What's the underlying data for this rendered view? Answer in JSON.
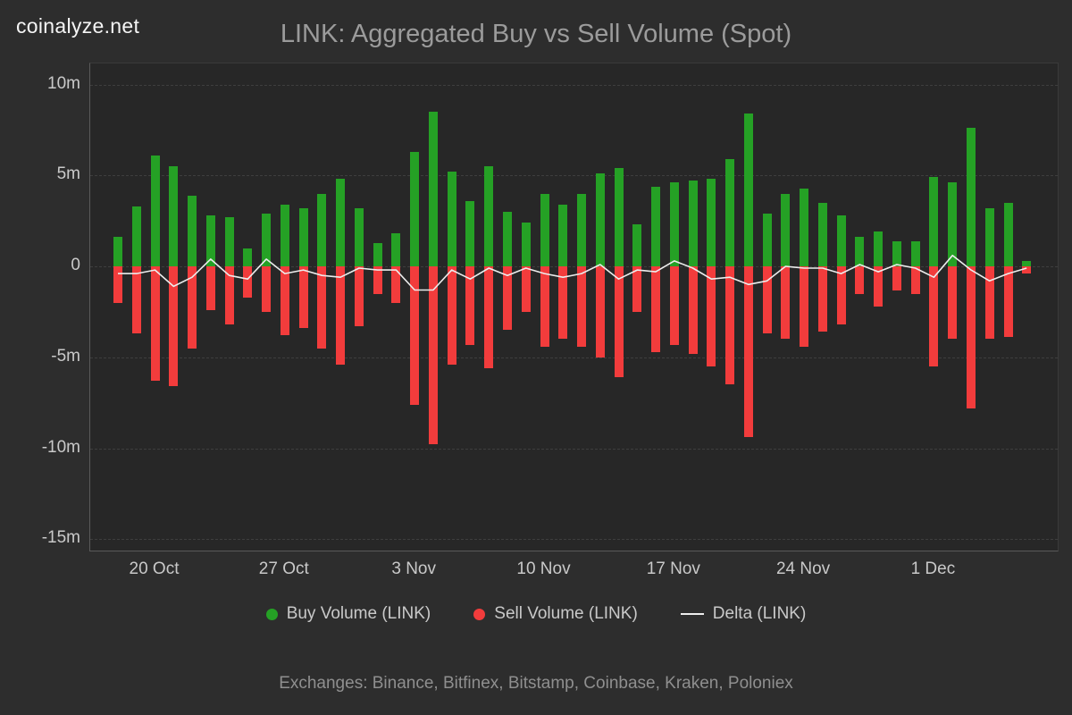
{
  "logo": "coinalyze.net",
  "title": "LINK: Aggregated Buy vs Sell Volume (Spot)",
  "footer": "Exchanges: Binance, Bitfinex, Bitstamp, Coinbase, Kraken, Poloniex",
  "legend": [
    {
      "label": "Buy Volume (LINK)",
      "color": "#25a125",
      "marker": "dot"
    },
    {
      "label": "Sell Volume (LINK)",
      "color": "#f23c3c",
      "marker": "dot"
    },
    {
      "label": "Delta (LINK)",
      "color": "#ededed",
      "marker": "line"
    }
  ],
  "chart_data": {
    "type": "bar",
    "title": "LINK: Aggregated Buy vs Sell Volume (Spot)",
    "unit": "millions of LINK",
    "x_unit": "day",
    "grid": "dashed-horizontal",
    "legend_position": "bottom",
    "ylim": [
      -15.7,
      11.2
    ],
    "categories": [
      "18 Oct",
      "19 Oct",
      "20 Oct",
      "21 Oct",
      "22 Oct",
      "23 Oct",
      "24 Oct",
      "25 Oct",
      "26 Oct",
      "27 Oct",
      "28 Oct",
      "29 Oct",
      "30 Oct",
      "31 Oct",
      "1 Nov",
      "2 Nov",
      "3 Nov",
      "4 Nov",
      "5 Nov",
      "6 Nov",
      "7 Nov",
      "8 Nov",
      "9 Nov",
      "10 Nov",
      "11 Nov",
      "12 Nov",
      "13 Nov",
      "14 Nov",
      "15 Nov",
      "16 Nov",
      "17 Nov",
      "18 Nov",
      "19 Nov",
      "20 Nov",
      "21 Nov",
      "22 Nov",
      "23 Nov",
      "24 Nov",
      "25 Nov",
      "26 Nov",
      "27 Nov",
      "28 Nov",
      "29 Nov",
      "30 Nov",
      "1 Dec",
      "2 Dec",
      "3 Dec",
      "4 Dec",
      "5 Dec",
      "6 Dec"
    ],
    "series": [
      {
        "name": "Buy Volume (LINK)",
        "type": "bar",
        "color": "#25a125",
        "values": [
          1.6,
          3.3,
          6.1,
          5.5,
          3.9,
          2.8,
          2.7,
          1.0,
          2.9,
          3.4,
          3.2,
          4.0,
          4.8,
          3.2,
          1.3,
          1.8,
          6.3,
          8.5,
          5.2,
          3.6,
          5.5,
          3.0,
          2.4,
          4.0,
          3.4,
          4.0,
          5.1,
          5.4,
          2.3,
          4.4,
          4.6,
          4.7,
          4.8,
          5.9,
          8.4,
          2.9,
          4.0,
          4.3,
          3.5,
          2.8,
          1.6,
          1.9,
          1.4,
          1.4,
          4.9,
          4.6,
          7.6,
          3.2,
          3.5,
          0.3
        ]
      },
      {
        "name": "Sell Volume (LINK)",
        "type": "bar",
        "color": "#f23c3c",
        "values": [
          -2.0,
          -3.7,
          -6.3,
          -6.6,
          -4.5,
          -2.4,
          -3.2,
          -1.7,
          -2.5,
          -3.8,
          -3.4,
          -4.5,
          -5.4,
          -3.3,
          -1.5,
          -2.0,
          -7.6,
          -9.8,
          -5.4,
          -4.3,
          -5.6,
          -3.5,
          -2.5,
          -4.4,
          -4.0,
          -4.4,
          -5.0,
          -6.1,
          -2.5,
          -4.7,
          -4.3,
          -4.8,
          -5.5,
          -6.5,
          -9.4,
          -3.7,
          -4.0,
          -4.4,
          -3.6,
          -3.2,
          -1.5,
          -2.2,
          -1.3,
          -1.5,
          -5.5,
          -4.0,
          -7.8,
          -4.0,
          -3.9,
          -0.4
        ]
      },
      {
        "name": "Delta (LINK)",
        "type": "line",
        "color": "#ededed",
        "values": [
          -0.4,
          -0.4,
          -0.2,
          -1.1,
          -0.6,
          0.4,
          -0.5,
          -0.7,
          0.4,
          -0.4,
          -0.2,
          -0.5,
          -0.6,
          -0.1,
          -0.2,
          -0.2,
          -1.3,
          -1.3,
          -0.2,
          -0.7,
          -0.1,
          -0.5,
          -0.1,
          -0.4,
          -0.6,
          -0.4,
          0.1,
          -0.7,
          -0.2,
          -0.3,
          0.3,
          -0.1,
          -0.7,
          -0.6,
          -1.0,
          -0.8,
          0.0,
          -0.1,
          -0.1,
          -0.4,
          0.1,
          -0.3,
          0.1,
          -0.1,
          -0.6,
          0.6,
          -0.2,
          -0.8,
          -0.4,
          -0.1
        ]
      }
    ],
    "yticks": [
      {
        "label": "10m",
        "value": 10
      },
      {
        "label": "5m",
        "value": 5
      },
      {
        "label": "0",
        "value": 0
      },
      {
        "label": "-5m",
        "value": -5
      },
      {
        "label": "-10m",
        "value": -10
      },
      {
        "label": "-15m",
        "value": -15
      }
    ],
    "xticks": [
      {
        "label": "20 Oct",
        "index": 2
      },
      {
        "label": "27 Oct",
        "index": 9
      },
      {
        "label": "3 Nov",
        "index": 16
      },
      {
        "label": "10 Nov",
        "index": 23
      },
      {
        "label": "17 Nov",
        "index": 30
      },
      {
        "label": "24 Nov",
        "index": 37
      },
      {
        "label": "1 Dec",
        "index": 44
      }
    ]
  }
}
